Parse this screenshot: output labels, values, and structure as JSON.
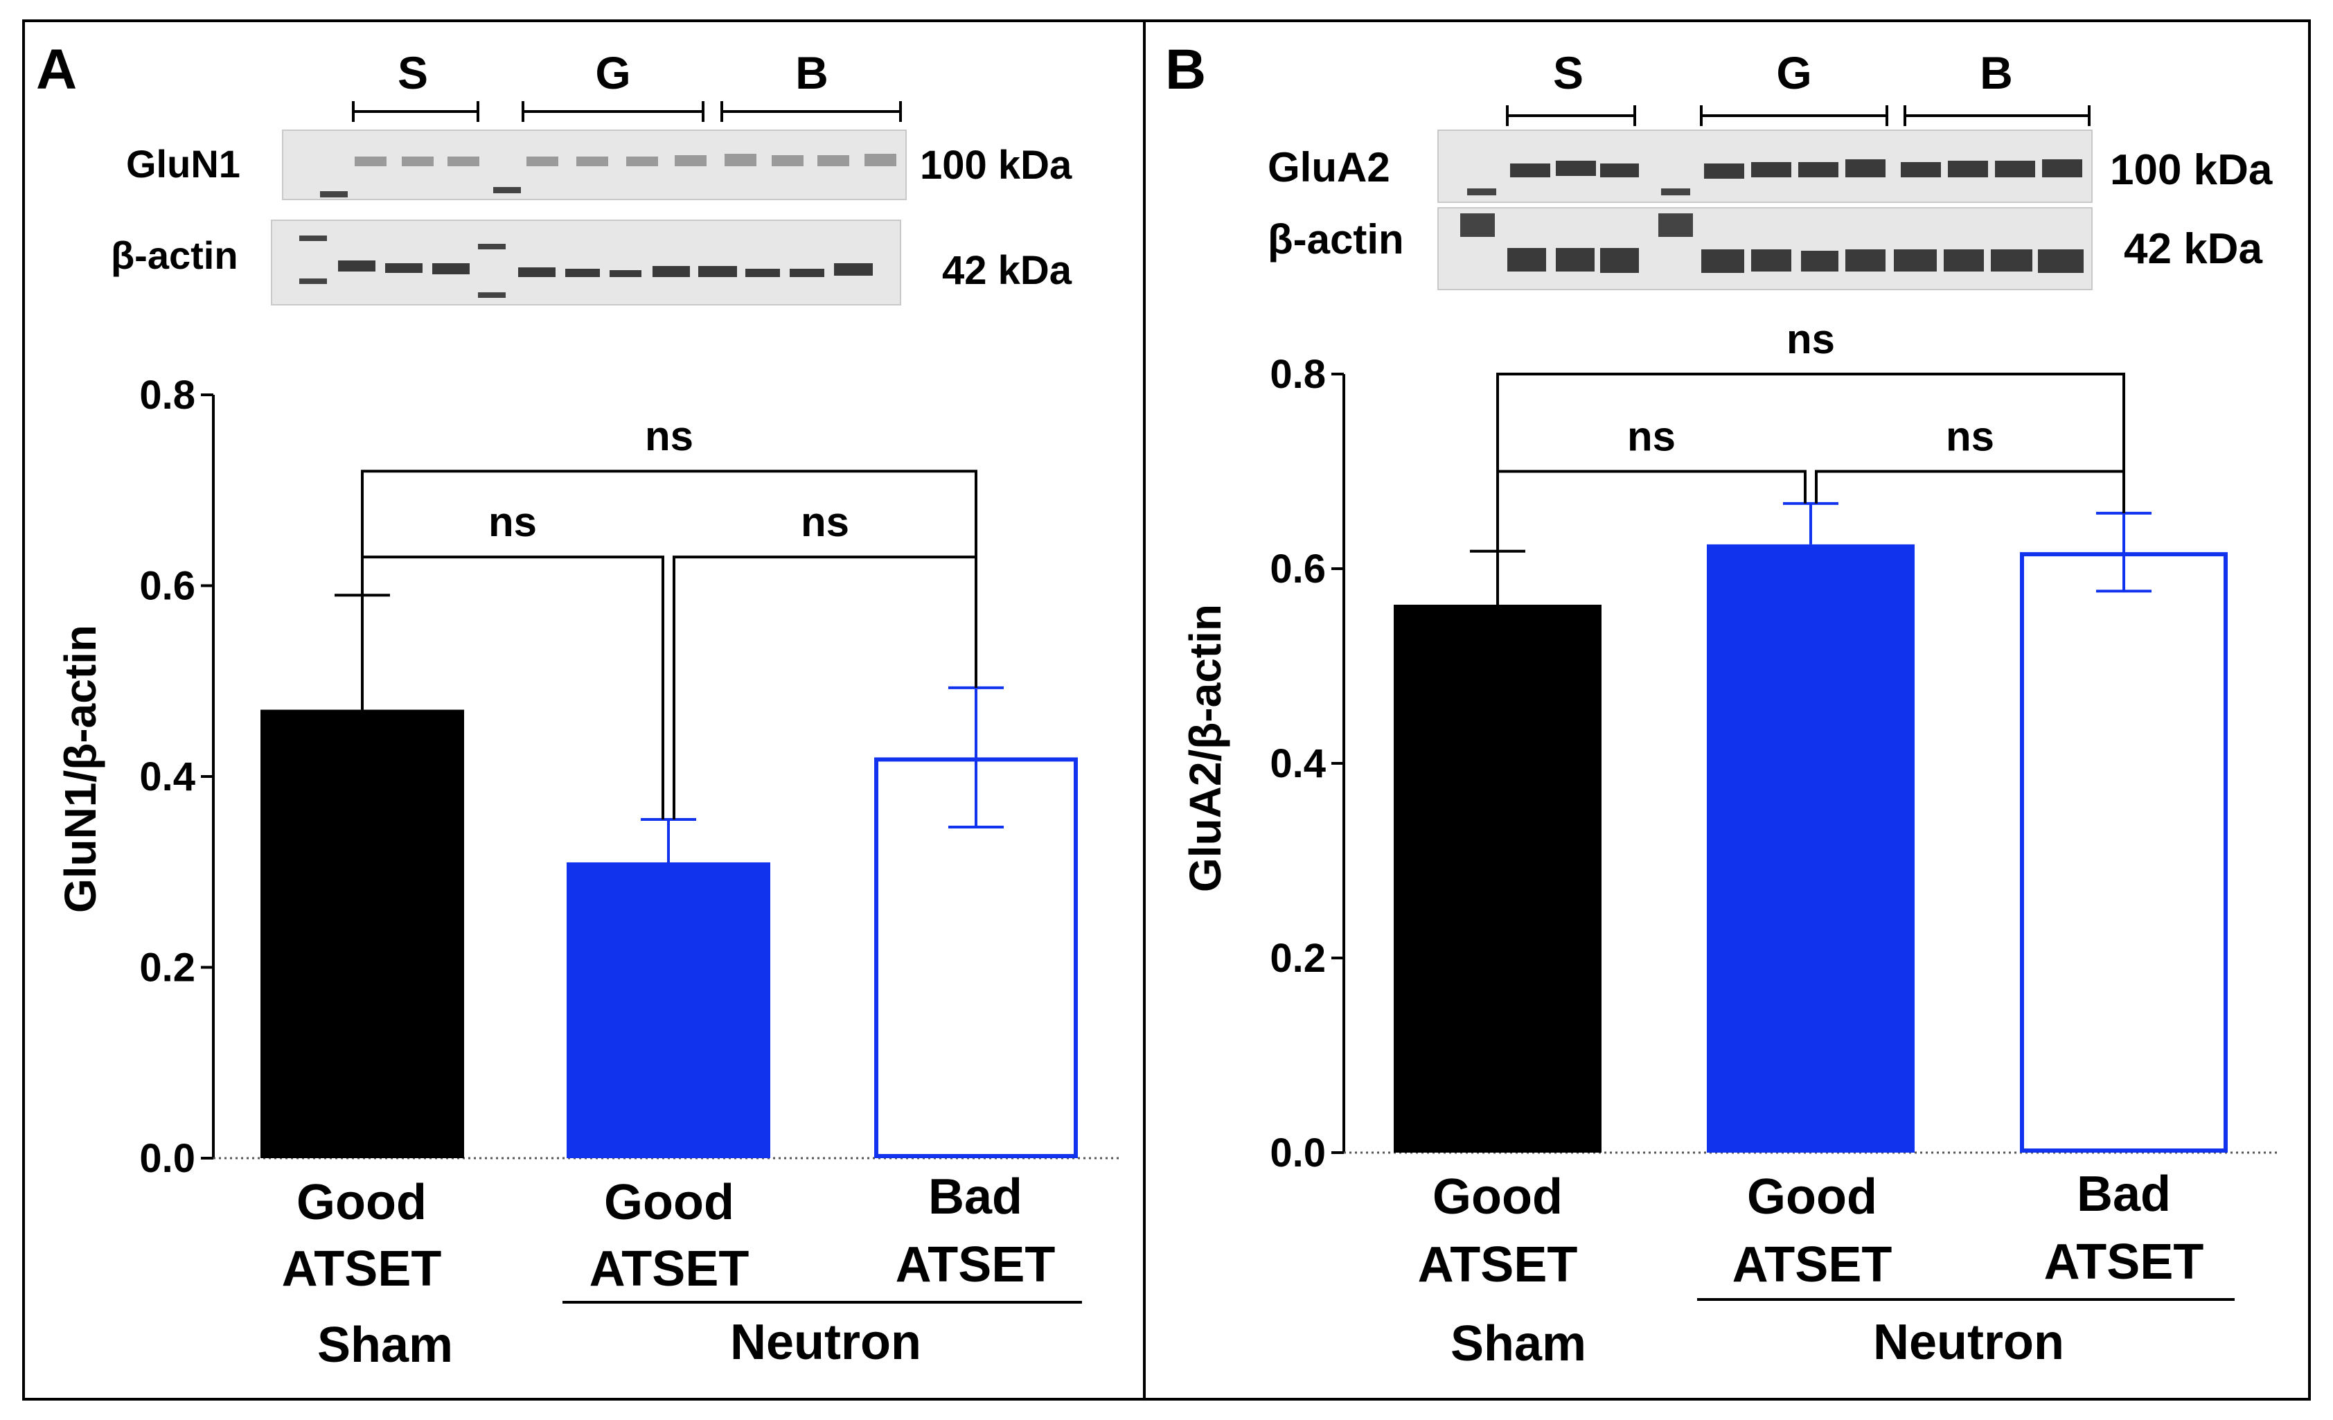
{
  "colors": {
    "black": "#000000",
    "blue": "#1133ee",
    "white": "#ffffff"
  },
  "chart_data": [
    {
      "type": "bar",
      "panel_label": "A",
      "blot": {
        "target_label": "GluN1",
        "target_size": "100 kDa",
        "loading_label": "β-actin",
        "loading_size": "42 kDa",
        "groups": [
          "S",
          "G",
          "B"
        ]
      },
      "ylabel": "GluN1/β-actin",
      "ylim": [
        0,
        0.8
      ],
      "yticks": [
        "0.0",
        "0.2",
        "0.4",
        "0.6",
        "0.8"
      ],
      "categories": [
        {
          "line1": "Good",
          "line2": "ATSET"
        },
        {
          "line1": "Good",
          "line2": "ATSET"
        },
        {
          "line1": "Bad",
          "line2": "ATSET"
        }
      ],
      "values": [
        0.47,
        0.31,
        0.42
      ],
      "errors": [
        0.12,
        0.045,
        0.073
      ],
      "bar_styles": [
        "black",
        "blue",
        "blue-outline"
      ],
      "group_labels": {
        "sham": "Sham",
        "neutron": "Neutron"
      },
      "significance": [
        {
          "pair": [
            0,
            1
          ],
          "label": "ns",
          "level": 0.63
        },
        {
          "pair": [
            1,
            2
          ],
          "label": "ns",
          "level": 0.63
        },
        {
          "pair": [
            0,
            2
          ],
          "label": "ns",
          "level": 0.72
        }
      ]
    },
    {
      "type": "bar",
      "panel_label": "B",
      "blot": {
        "target_label": "GluA2",
        "target_size": "100 kDa",
        "loading_label": "β-actin",
        "loading_size": "42 kDa",
        "groups": [
          "S",
          "G",
          "B"
        ]
      },
      "ylabel": "GluA2/β-actin",
      "ylim": [
        0,
        0.8
      ],
      "yticks": [
        "0.0",
        "0.2",
        "0.4",
        "0.6",
        "0.8"
      ],
      "categories": [
        {
          "line1": "Good",
          "line2": "ATSET"
        },
        {
          "line1": "Good",
          "line2": "ATSET"
        },
        {
          "line1": "Bad",
          "line2": "ATSET"
        }
      ],
      "values": [
        0.563,
        0.625,
        0.617
      ],
      "errors": [
        0.055,
        0.042,
        0.04
      ],
      "bar_styles": [
        "black",
        "blue",
        "blue-outline"
      ],
      "group_labels": {
        "sham": "Sham",
        "neutron": "Neutron"
      },
      "significance": [
        {
          "pair": [
            0,
            1
          ],
          "label": "ns",
          "level": 0.7
        },
        {
          "pair": [
            1,
            2
          ],
          "label": "ns",
          "level": 0.7
        },
        {
          "pair": [
            0,
            2
          ],
          "label": "ns",
          "level": 0.8
        }
      ]
    }
  ]
}
